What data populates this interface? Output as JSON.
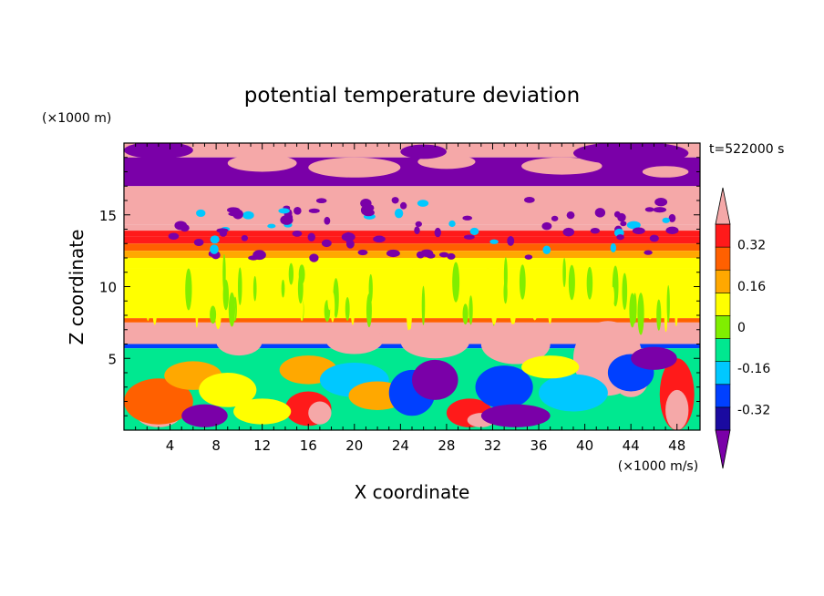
{
  "chart_data": {
    "type": "heatmap",
    "title": "potential temperature deviation",
    "time_label": "t=522000 s",
    "xlabel": "X coordinate",
    "ylabel": "Z coordinate",
    "x_unit": "(×1000 m/s)",
    "y_unit": "(×1000 m)",
    "xlim": [
      0,
      50
    ],
    "ylim": [
      0,
      20
    ],
    "x_ticks": [
      4,
      8,
      12,
      16,
      20,
      24,
      28,
      32,
      36,
      40,
      44,
      48
    ],
    "y_ticks": [
      5,
      10,
      15
    ],
    "colorbar": {
      "levels": [
        -0.4,
        -0.32,
        -0.24,
        -0.16,
        -0.08,
        0,
        0.08,
        0.16,
        0.24,
        0.32,
        0.4
      ],
      "labels": [
        "-0.32",
        "-0.16",
        "0",
        "0.16",
        "0.32"
      ],
      "label_values": [
        -0.32,
        -0.16,
        0,
        0.16,
        0.32
      ],
      "colors": [
        "#7a00a8",
        "#1a0aa0",
        "#0040ff",
        "#00c8ff",
        "#00e890",
        "#80ee00",
        "#ffff00",
        "#ffa800",
        "#ff6000",
        "#ff1a1a",
        "#f5a8a8"
      ],
      "extend": "both"
    },
    "bands": [
      {
        "z": [
          19.0,
          20.0
        ],
        "value": 0.45
      },
      {
        "z": [
          17.0,
          19.0
        ],
        "value": -0.45
      },
      {
        "z": [
          14.3,
          17.0
        ],
        "value": 0.45
      },
      {
        "z": [
          13.9,
          14.3
        ],
        "value": 0.36
      },
      {
        "z": [
          13.5,
          13.9
        ],
        "value": 0.3
      },
      {
        "z": [
          13.0,
          13.5
        ],
        "value": 0.25
      },
      {
        "z": [
          12.5,
          13.0
        ],
        "value": 0.2
      },
      {
        "z": [
          12.0,
          12.5
        ],
        "value": 0.13
      },
      {
        "z": [
          11.3,
          12.0
        ],
        "value": 0.06
      },
      {
        "z": [
          7.8,
          11.3
        ],
        "value": 0.02
      },
      {
        "z": [
          7.5,
          7.8
        ],
        "value": 0.2
      },
      {
        "z": [
          6.0,
          7.5
        ],
        "value": 0.45
      },
      {
        "z": [
          5.7,
          6.0
        ],
        "value": -0.3
      },
      {
        "z": [
          0,
          5.7
        ],
        "value": -0.12
      }
    ]
  }
}
